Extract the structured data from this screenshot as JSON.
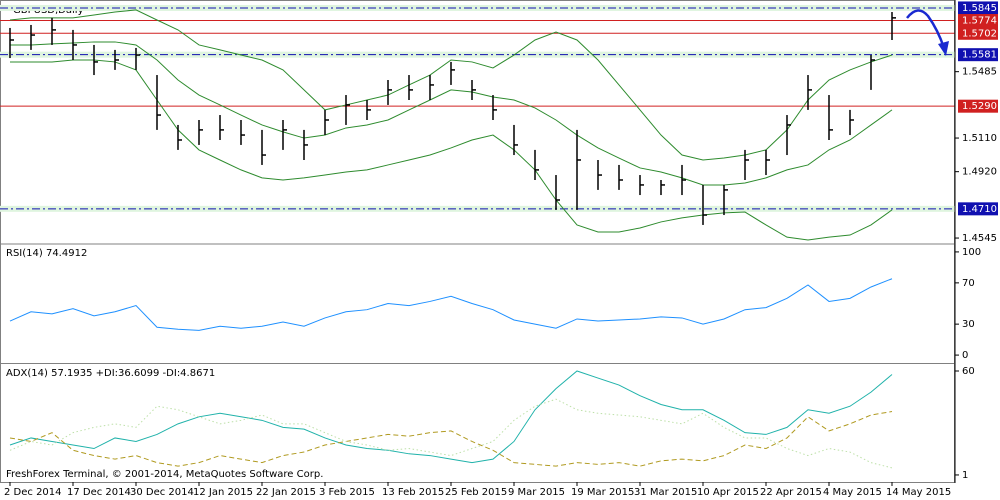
{
  "chart_data": [
    {
      "type": "ohlc",
      "title": "GBPUSD,Daily",
      "categories": [
        "2 Dec 2014",
        null,
        null,
        "17 Dec 2014",
        null,
        null,
        "30 Dec 2014",
        null,
        null,
        "12 Jan 2015",
        null,
        null,
        "22 Jan 2015",
        null,
        null,
        "3 Feb 2015",
        null,
        null,
        "13 Feb 2015",
        null,
        null,
        "25 Feb 2015",
        null,
        null,
        "9 Mar 2015",
        null,
        null,
        "19 Mar 2015",
        null,
        null,
        "31 Mar 2015",
        null,
        null,
        "10 Apr 2015",
        null,
        null,
        "22 Apr 2015",
        null,
        null,
        "4 May 2015",
        null,
        null,
        "14 May 2015"
      ],
      "high": [
        1.5732,
        1.5749,
        1.5789,
        1.5721,
        1.5636,
        1.5608,
        1.5619,
        1.5466,
        1.5184,
        1.5212,
        1.524,
        1.5212,
        1.5156,
        1.5212,
        1.5156,
        1.5269,
        1.5353,
        1.5325,
        1.5438,
        1.5466,
        1.5466,
        1.554,
        1.5438,
        1.5353,
        1.5184,
        1.5043,
        1.4901,
        1.5156,
        1.4986,
        1.4958,
        1.4901,
        1.4873,
        1.4958,
        1.4845,
        1.4845,
        1.5043,
        1.5043,
        1.524,
        1.5466,
        1.5353,
        1.5269,
        1.5579,
        1.5822
      ],
      "low": [
        1.5562,
        1.5608,
        1.5636,
        1.5551,
        1.5466,
        1.5495,
        1.5495,
        1.5156,
        1.5043,
        1.5071,
        1.5099,
        1.5071,
        1.4958,
        1.5043,
        1.4986,
        1.5127,
        1.5184,
        1.5212,
        1.5297,
        1.5325,
        1.5325,
        1.541,
        1.5325,
        1.5212,
        1.5014,
        1.4873,
        1.4704,
        1.4704,
        1.4817,
        1.4817,
        1.4788,
        1.4788,
        1.4788,
        1.4619,
        1.4675,
        1.4873,
        1.4901,
        1.5014,
        1.5269,
        1.5099,
        1.5127,
        1.5382,
        1.5664
      ],
      "close": [
        1.5664,
        1.5692,
        1.5721,
        1.5636,
        1.554,
        1.5551,
        1.5579,
        1.524,
        1.5099,
        1.5156,
        1.5156,
        1.5127,
        1.5014,
        1.5156,
        1.5071,
        1.5212,
        1.5297,
        1.5269,
        1.5382,
        1.5382,
        1.541,
        1.5495,
        1.5382,
        1.5269,
        1.5071,
        1.493,
        1.476,
        1.4986,
        1.4901,
        1.4873,
        1.4845,
        1.4845,
        1.4873,
        1.4675,
        1.4817,
        1.4986,
        1.4986,
        1.5184,
        1.5382,
        1.5156,
        1.5212,
        1.5551,
        1.5789
      ],
      "bar_color": "#000000",
      "bands": {
        "color": "#2e8b2e",
        "upper": [
          1.5777,
          1.5789,
          1.5789,
          1.5789,
          1.5805,
          1.5822,
          1.5834,
          1.5777,
          1.5721,
          1.5636,
          1.5608,
          1.5579,
          1.5551,
          1.5495,
          1.5382,
          1.5269,
          1.5297,
          1.5325,
          1.5353,
          1.541,
          1.5466,
          1.5551,
          1.554,
          1.5506,
          1.5579,
          1.5664,
          1.5709,
          1.5664,
          1.5551,
          1.541,
          1.5269,
          1.5127,
          1.5014,
          1.4986,
          1.4997,
          1.5014,
          1.5043,
          1.5156,
          1.5325,
          1.5438,
          1.5495,
          1.554,
          1.5579
        ],
        "middle": [
          1.5636,
          1.5636,
          1.5642,
          1.5647,
          1.5653,
          1.5653,
          1.5636,
          1.5551,
          1.5438,
          1.5353,
          1.5297,
          1.524,
          1.5184,
          1.5145,
          1.511,
          1.5127,
          1.5167,
          1.5184,
          1.5212,
          1.5269,
          1.5325,
          1.5382,
          1.537,
          1.5342,
          1.5325,
          1.528,
          1.5212,
          1.5127,
          1.5054,
          1.4997,
          1.4941,
          1.4918,
          1.4885,
          1.4845,
          1.4845,
          1.4856,
          1.4885,
          1.493,
          1.4958,
          1.5043,
          1.5099,
          1.5184,
          1.5269
        ],
        "lower": [
          1.554,
          1.554,
          1.554,
          1.5551,
          1.5551,
          1.554,
          1.5495,
          1.5325,
          1.5156,
          1.5043,
          1.4986,
          1.493,
          1.4885,
          1.4873,
          1.4885,
          1.4901,
          1.4918,
          1.493,
          1.4958,
          1.4986,
          1.5014,
          1.5054,
          1.5099,
          1.5127,
          1.5043,
          1.493,
          1.476,
          1.4619,
          1.4579,
          1.4579,
          1.4602,
          1.4636,
          1.4659,
          1.4675,
          1.4687,
          1.4692,
          1.4619,
          1.455,
          1.4534,
          1.455,
          1.4562,
          1.4619,
          1.4704
        ]
      },
      "levels": [
        {
          "value": 1.5845,
          "color": "#1010b0",
          "style": "dashdot"
        },
        {
          "value": 1.5774,
          "color": "#d02020",
          "style": "solid"
        },
        {
          "value": 1.5702,
          "color": "#d02020",
          "style": "solid"
        },
        {
          "value": 1.5581,
          "color": "#1010b0",
          "style": "dashdot"
        },
        {
          "value": 1.529,
          "label": "1.5290",
          "color": "#d02020",
          "style": "solid"
        },
        {
          "value": 1.471,
          "label": "1.4710",
          "color": "#1010b0",
          "style": "dashdot"
        }
      ],
      "ylim": [
        1.4517,
        1.5873
      ],
      "yticks": [
        1.5485,
        {
          "value": 1.511,
          "label": "1.5110"
        },
        {
          "value": 1.492,
          "label": "1.4920"
        },
        1.4545
      ]
    },
    {
      "type": "line",
      "title": "RSI(14) 74.4912",
      "series": [
        {
          "color": "#1e90ff",
          "style": "solid",
          "values": [
            33,
            42,
            40,
            45,
            38,
            42,
            48,
            27,
            25,
            24,
            28,
            26,
            28,
            32,
            28,
            36,
            42,
            44,
            50,
            48,
            52,
            57,
            50,
            44,
            34,
            30,
            26,
            35,
            33,
            34,
            35,
            37,
            36,
            30,
            35,
            44,
            46,
            55,
            68,
            52,
            55,
            66,
            74
          ]
        }
      ],
      "ylim": [
        -6.7,
        106.7
      ],
      "yticks": [
        100,
        70,
        30,
        0
      ]
    },
    {
      "type": "line",
      "title": "ADX(14) 57.1935 +DI:36.6099 -DI:4.8671",
      "series": [
        {
          "color": "#20b2aa",
          "style": "solid",
          "values": [
            18,
            22,
            20,
            18,
            16,
            22,
            20,
            24,
            30,
            34,
            36,
            34,
            32,
            28,
            27,
            22,
            18,
            16,
            15,
            13,
            12,
            10,
            8,
            10,
            20,
            38,
            50,
            60,
            56,
            52,
            46,
            41,
            38,
            38,
            32,
            25,
            24,
            28,
            38,
            36,
            40,
            48,
            58
          ]
        },
        {
          "color": "#b09a20",
          "style": "dashed",
          "values": [
            22,
            20,
            25,
            15,
            12,
            10,
            12,
            8,
            6,
            8,
            12,
            10,
            8,
            12,
            14,
            18,
            20,
            22,
            24,
            23,
            25,
            26,
            20,
            15,
            8,
            7,
            6,
            8,
            7,
            8,
            6,
            9,
            10,
            9,
            12,
            18,
            16,
            22,
            34,
            26,
            30,
            35,
            37
          ]
        },
        {
          "color": "#bde0a8",
          "style": "dotted",
          "values": [
            15,
            20,
            18,
            25,
            28,
            30,
            28,
            40,
            38,
            34,
            30,
            32,
            35,
            30,
            30,
            25,
            20,
            18,
            15,
            16,
            14,
            12,
            16,
            20,
            32,
            40,
            44,
            38,
            36,
            35,
            34,
            32,
            30,
            36,
            28,
            22,
            22,
            16,
            12,
            16,
            14,
            8,
            5
          ]
        }
      ],
      "ylim": [
        -3,
        63.4
      ],
      "yticks": [
        60,
        1
      ]
    }
  ],
  "copyright": "FreshForex Terminal, © 2001-2014, MetaQuotes Software Corp."
}
